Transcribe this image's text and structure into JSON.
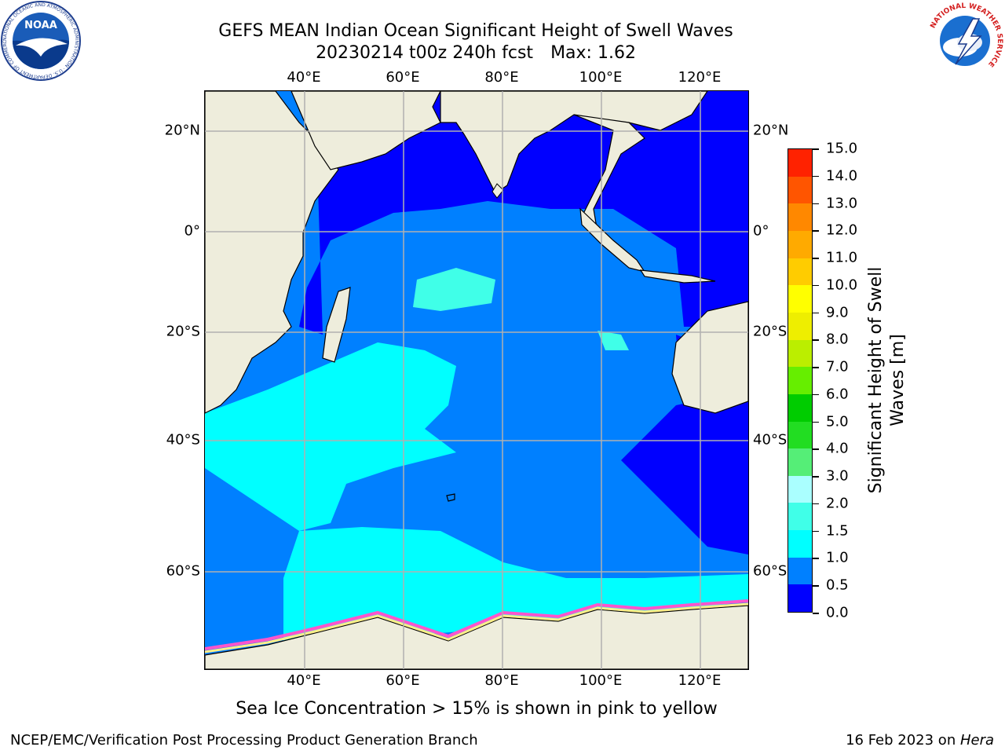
{
  "title": {
    "line1": "GEFS MEAN Indian Ocean Significant Height of Swell Waves",
    "run": "20230214 t00z 240h fcst",
    "max": "Max: 1.62"
  },
  "map": {
    "lon_ticks": [
      "40°E",
      "60°E",
      "80°E",
      "100°E",
      "120°E"
    ],
    "lat_ticks": [
      "20°N",
      "0°",
      "20°S",
      "40°S",
      "60°S"
    ],
    "colors": {
      "land": "#eeeddc",
      "ocean_low": "#0000ff",
      "ocean_mid": "#0080ff",
      "ocean_high": "#00ffff",
      "ocean_peak": "#55ffee",
      "ice_pink": "#ff55cc",
      "ice_yellow": "#ffee88",
      "grid": "#b0b0b0"
    }
  },
  "colorbar": {
    "title_line1": "Significant Height of Swell",
    "title_line2": "Waves [m]",
    "labels": [
      "0.0",
      "0.5",
      "1.0",
      "1.5",
      "2.0",
      "3.0",
      "4.0",
      "5.0",
      "6.0",
      "7.0",
      "8.0",
      "9.0",
      "10.0",
      "11.0",
      "12.0",
      "13.0",
      "14.0",
      "15.0"
    ],
    "colors": [
      "#0000ff",
      "#0080ff",
      "#00ffff",
      "#40ffe8",
      "#aaffff",
      "#55ee77",
      "#22dd22",
      "#00cc00",
      "#66ee00",
      "#bbee00",
      "#eeee00",
      "#ffff00",
      "#ffcc00",
      "#ffaa00",
      "#ff8800",
      "#ff5500",
      "#ff2200"
    ]
  },
  "note": "Sea Ice Concentration > 15% is shown in pink to yellow",
  "footer": {
    "left": "NCEP/EMC/Verification Post Processing Product Generation Branch",
    "date": "16 Feb 2023 on ",
    "host": "Hera"
  },
  "logos": {
    "noaa_text": "NOAA",
    "noaa_ring": "NATIONAL OCEANIC AND ATMOSPHERIC ADMINISTRATION · U.S. DEPARTMENT OF COMMERCE",
    "nws_ring": "NATIONAL WEATHER SERVICE"
  }
}
